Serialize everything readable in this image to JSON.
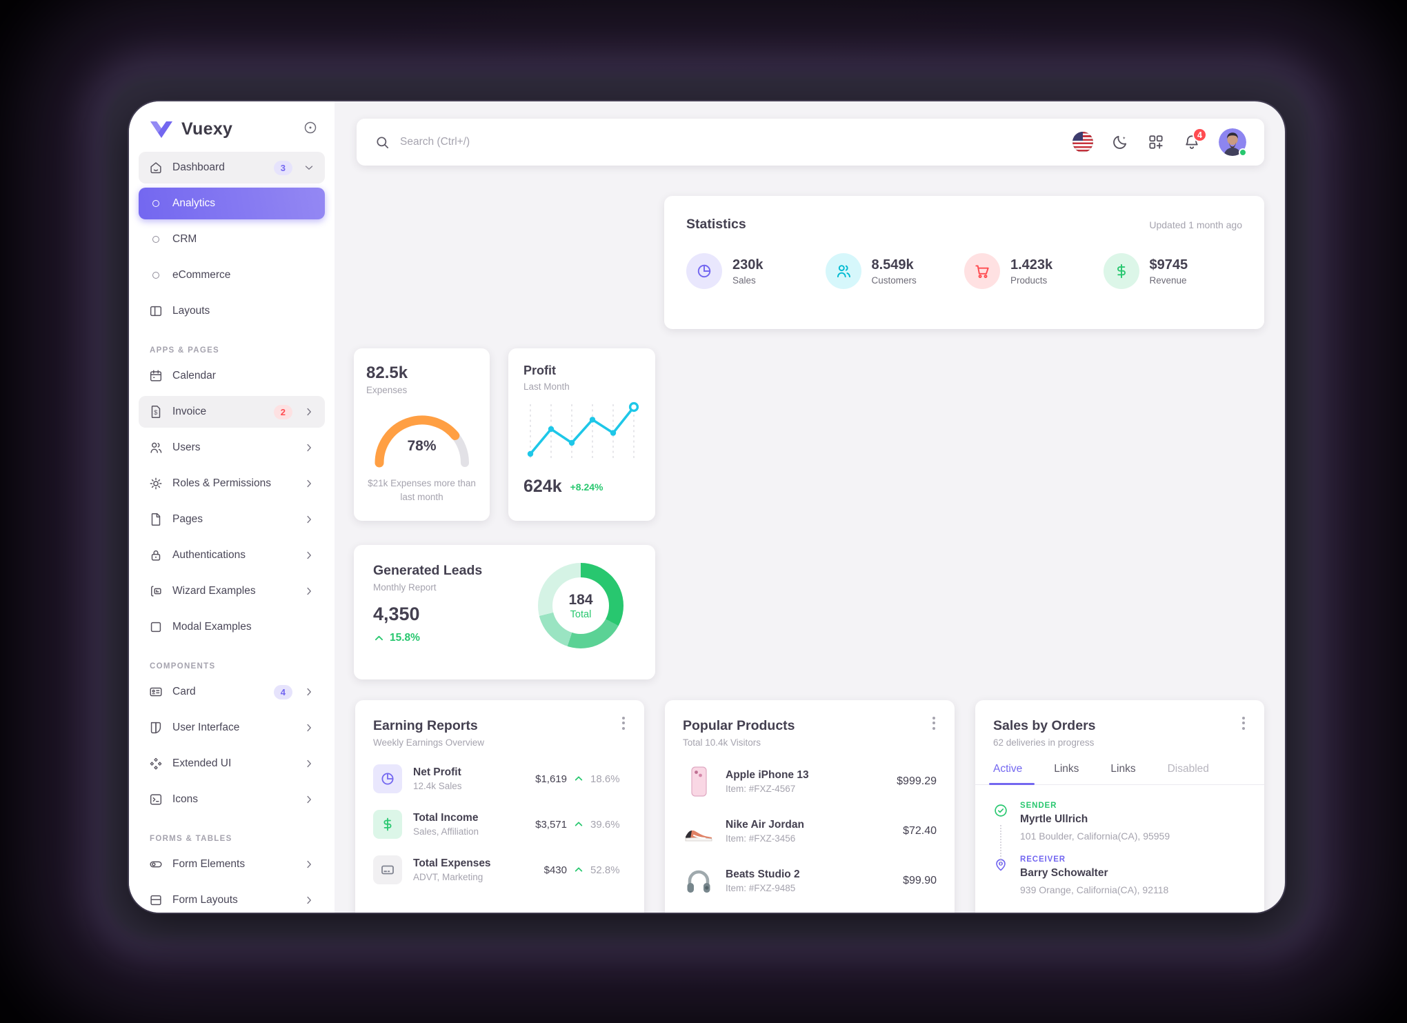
{
  "colors": {
    "primary": "#7367f0",
    "green": "#28c76f",
    "orange": "#ff9f43",
    "red": "#ff4c51",
    "cyan": "#00bad1",
    "line": "#1ec7e8"
  },
  "sidebar": {
    "logo_text": "Vuexy",
    "groups": [
      {
        "header": "",
        "items": [
          {
            "label": "Dashboard",
            "badge": "3"
          },
          {
            "label": "Analytics"
          },
          {
            "label": "CRM"
          },
          {
            "label": "eCommerce"
          },
          {
            "label": "Layouts"
          }
        ]
      },
      {
        "header": "APPS & PAGES",
        "items": [
          {
            "label": "Calendar"
          },
          {
            "label": "Invoice",
            "badge": "2"
          },
          {
            "label": "Users"
          },
          {
            "label": "Roles & Permissions"
          },
          {
            "label": "Pages"
          },
          {
            "label": "Authentications"
          },
          {
            "label": "Wizard Examples"
          },
          {
            "label": "Modal Examples"
          }
        ]
      },
      {
        "header": "COMPONENTS",
        "items": [
          {
            "label": "Card",
            "badge": "4"
          },
          {
            "label": "User Interface"
          },
          {
            "label": "Extended UI"
          },
          {
            "label": "Icons"
          }
        ]
      },
      {
        "header": "FORMS & TABLES",
        "items": [
          {
            "label": "Form Elements"
          },
          {
            "label": "Form Layouts"
          }
        ]
      }
    ]
  },
  "topbar": {
    "search_placeholder": "Search (Ctrl+/)",
    "notification_count": "4",
    "icons": [
      "us-flag-icon",
      "moon-icon",
      "grid-plus-icon",
      "bell-icon",
      "avatar"
    ]
  },
  "statistics": {
    "title": "Statistics",
    "updated": "Updated 1 month ago",
    "items": [
      {
        "icon": "pie-chart-icon",
        "value": "230k",
        "label": "Sales"
      },
      {
        "icon": "users-icon",
        "value": "8.549k",
        "label": "Customers"
      },
      {
        "icon": "cart-icon",
        "value": "1.423k",
        "label": "Products"
      },
      {
        "icon": "dollar-icon",
        "value": "$9745",
        "label": "Revenue"
      }
    ]
  },
  "expenses": {
    "value": "82.5k",
    "label": "Expenses",
    "percent": "78%",
    "caption": "$21k Expenses more than last month"
  },
  "profit": {
    "title": "Profit",
    "subtitle": "Last Month",
    "value": "624k",
    "delta": "+8.24%",
    "chart": {
      "type": "line",
      "values": [
        10,
        55,
        30,
        72,
        48,
        95
      ]
    }
  },
  "generated_leads": {
    "title": "Generated Leads",
    "subtitle": "Monthly Report",
    "value": "4,350",
    "delta": "15.8%",
    "total_value": "184",
    "total_label": "Total",
    "segments": [
      {
        "color": "#28c76f",
        "deg": 118
      },
      {
        "color": "#5bd295",
        "deg": 80
      },
      {
        "color": "#9ae4c2",
        "deg": 58
      },
      {
        "color": "#d5f3e5",
        "deg": 104
      }
    ]
  },
  "earning_reports": {
    "title": "Earning Reports",
    "subtitle": "Weekly Earnings Overview",
    "rows": [
      {
        "icon": "pie-chart-icon",
        "title": "Net Profit",
        "sub": "12.4k Sales",
        "amount": "$1,619",
        "percent": "18.6%"
      },
      {
        "icon": "dollar-icon",
        "title": "Total Income",
        "sub": "Sales, Affiliation",
        "amount": "$3,571",
        "percent": "39.6%"
      },
      {
        "icon": "credit-card-icon",
        "title": "Total Expenses",
        "sub": "ADVT, Marketing",
        "amount": "$430",
        "percent": "52.8%"
      }
    ]
  },
  "popular_products": {
    "title": "Popular Products",
    "subtitle": "Total 10.4k Visitors",
    "items": [
      {
        "image": "iphone-image",
        "name": "Apple iPhone 13",
        "item": "Item: #FXZ-4567",
        "price": "$999.29"
      },
      {
        "image": "sneaker-image",
        "name": "Nike Air Jordan",
        "item": "Item: #FXZ-3456",
        "price": "$72.40"
      },
      {
        "image": "headphones-image",
        "name": "Beats Studio 2",
        "item": "Item: #FXZ-9485",
        "price": "$99.90"
      }
    ]
  },
  "sales_by_orders": {
    "title": "Sales by Orders",
    "subtitle": "62 deliveries in progress",
    "tabs": [
      "Active",
      "Links",
      "Links",
      "Disabled"
    ],
    "sender": {
      "label": "SENDER",
      "name": "Myrtle Ullrich",
      "address": "101 Boulder, California(CA), 95959"
    },
    "receiver": {
      "label": "RECEIVER",
      "name": "Barry Schowalter",
      "address": "939 Orange, California(CA), 92118"
    }
  }
}
